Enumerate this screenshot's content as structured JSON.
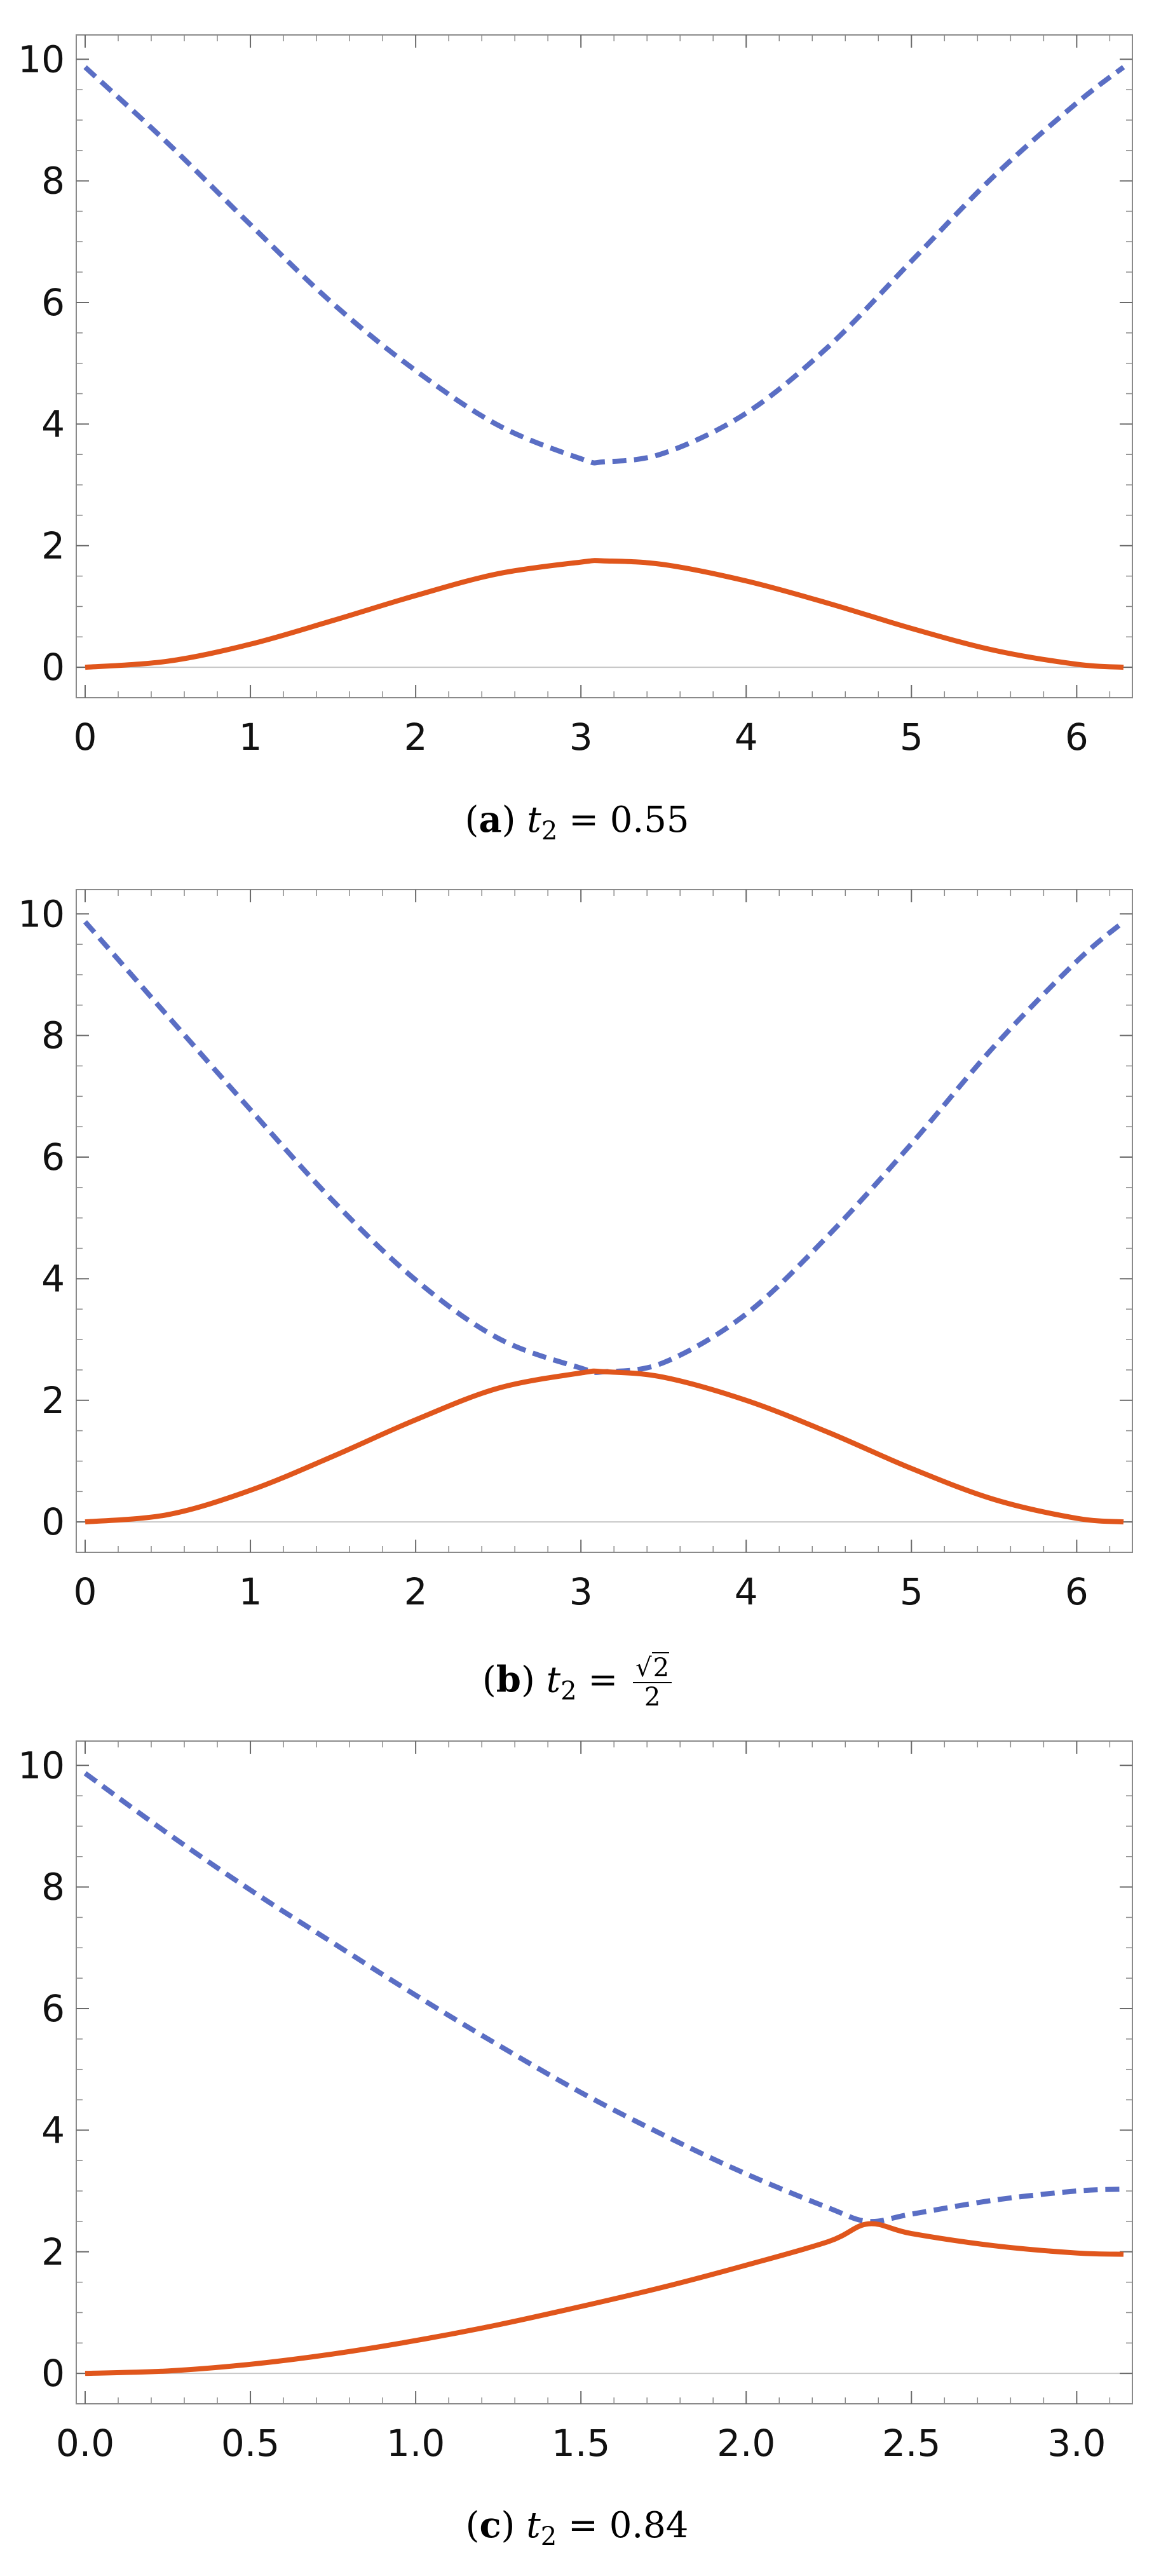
{
  "chart_data": [
    {
      "type": "line",
      "caption": {
        "letter": "a",
        "variable": "t",
        "subscript": "2",
        "equals": "= 0.55"
      },
      "xlim": [
        0,
        6.2832
      ],
      "ylim": [
        -0.5,
        10.4
      ],
      "x_ticks": [
        0,
        1,
        2,
        3,
        4,
        5,
        6
      ],
      "x_tick_labels": [
        "0",
        "1",
        "2",
        "3",
        "4",
        "5",
        "6"
      ],
      "y_ticks": [
        0,
        2,
        4,
        6,
        8,
        10
      ],
      "y_tick_labels": [
        "0",
        "2",
        "4",
        "6",
        "8",
        "10"
      ],
      "grid": false,
      "series": [
        {
          "style": "dashed",
          "color": "#5a6ec4",
          "x": [
            0,
            0.5,
            1.0,
            1.5,
            2.0,
            2.5,
            3.0,
            3.1416,
            3.5,
            4.0,
            4.5,
            5.0,
            5.5,
            6.0,
            6.2832
          ],
          "y": [
            9.87,
            8.62,
            7.28,
            5.98,
            4.88,
            3.98,
            3.43,
            3.38,
            3.52,
            4.18,
            5.28,
            6.68,
            8.08,
            9.28,
            9.87
          ]
        },
        {
          "style": "solid",
          "color": "#e0561c",
          "x": [
            0,
            0.5,
            1.0,
            1.5,
            2.0,
            2.5,
            3.0,
            3.1416,
            3.5,
            4.0,
            4.5,
            5.0,
            5.5,
            6.0,
            6.2832
          ],
          "y": [
            0,
            0.1,
            0.38,
            0.77,
            1.18,
            1.54,
            1.73,
            1.75,
            1.69,
            1.42,
            1.05,
            0.64,
            0.28,
            0.05,
            0
          ]
        }
      ]
    },
    {
      "type": "line",
      "caption": {
        "letter": "b",
        "variable": "t",
        "subscript": "2",
        "equals": "=",
        "frac_num": "2",
        "frac_den": "2"
      },
      "xlim": [
        0,
        6.2832
      ],
      "ylim": [
        -0.5,
        10.4
      ],
      "x_ticks": [
        0,
        1,
        2,
        3,
        4,
        5,
        6
      ],
      "x_tick_labels": [
        "0",
        "1",
        "2",
        "3",
        "4",
        "5",
        "6"
      ],
      "y_ticks": [
        0,
        2,
        4,
        6,
        8,
        10
      ],
      "y_tick_labels": [
        "0",
        "2",
        "4",
        "6",
        "8",
        "10"
      ],
      "grid": false,
      "series": [
        {
          "style": "dashed",
          "color": "#5a6ec4",
          "x": [
            0,
            0.5,
            1.0,
            1.5,
            2.0,
            2.5,
            3.0,
            3.1416,
            3.5,
            4.0,
            4.5,
            5.0,
            5.5,
            6.0,
            6.2832
          ],
          "y": [
            9.87,
            8.32,
            6.78,
            5.28,
            3.98,
            3.02,
            2.53,
            2.47,
            2.62,
            3.42,
            4.72,
            6.22,
            7.82,
            9.22,
            9.87
          ]
        },
        {
          "style": "solid",
          "color": "#e0561c",
          "x": [
            0,
            0.5,
            1.0,
            1.5,
            2.0,
            2.5,
            3.0,
            3.1416,
            3.5,
            4.0,
            4.5,
            5.0,
            5.5,
            6.0,
            6.2832
          ],
          "y": [
            0,
            0.12,
            0.52,
            1.08,
            1.68,
            2.2,
            2.45,
            2.47,
            2.38,
            2.0,
            1.47,
            0.88,
            0.37,
            0.06,
            0
          ]
        }
      ]
    },
    {
      "type": "line",
      "caption": {
        "letter": "c",
        "variable": "t",
        "subscript": "2",
        "equals": "= 0.84"
      },
      "xlim": [
        0,
        3.1416
      ],
      "ylim": [
        -0.5,
        10.4
      ],
      "x_ticks": [
        0,
        0.5,
        1.0,
        1.5,
        2.0,
        2.5,
        3.0
      ],
      "x_tick_labels": [
        "0.0",
        "0.5",
        "1.0",
        "1.5",
        "2.0",
        "2.5",
        "3.0"
      ],
      "y_ticks": [
        0,
        2,
        4,
        6,
        8,
        10
      ],
      "y_tick_labels": [
        "0",
        "2",
        "4",
        "6",
        "8",
        "10"
      ],
      "grid": false,
      "series": [
        {
          "style": "dashed",
          "color": "#5a6ec4",
          "x": [
            0,
            0.25,
            0.5,
            0.75,
            1.0,
            1.25,
            1.5,
            1.75,
            2.0,
            2.25,
            2.37,
            2.5,
            2.75,
            3.0,
            3.1416
          ],
          "y": [
            9.87,
            8.88,
            7.95,
            7.08,
            6.22,
            5.4,
            4.62,
            3.92,
            3.28,
            2.72,
            2.5,
            2.62,
            2.85,
            3.0,
            3.03
          ]
        },
        {
          "style": "solid",
          "color": "#e0561c",
          "x": [
            0,
            0.25,
            0.5,
            0.75,
            1.0,
            1.25,
            1.5,
            1.75,
            2.0,
            2.25,
            2.37,
            2.5,
            2.75,
            3.0,
            3.1416
          ],
          "y": [
            0,
            0.04,
            0.15,
            0.32,
            0.54,
            0.8,
            1.1,
            1.42,
            1.78,
            2.17,
            2.46,
            2.3,
            2.1,
            1.98,
            1.96
          ]
        }
      ]
    }
  ]
}
